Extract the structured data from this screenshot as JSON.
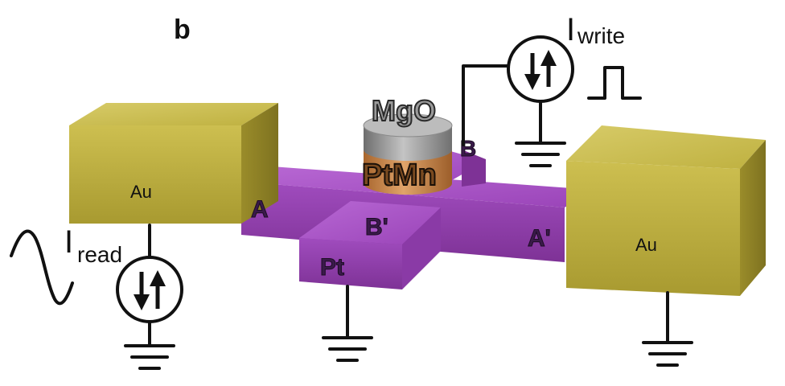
{
  "panel_label": "b",
  "labels": {
    "au_left": "Au",
    "au_right": "Au",
    "mgo": "MgO",
    "ptmn": "PtMn",
    "pt": "Pt",
    "arm_a": "A",
    "arm_a_prime": "A'",
    "arm_b": "B",
    "arm_b_prime": "B'"
  },
  "currents": {
    "read": {
      "symbol": "I",
      "subscript": "read"
    },
    "write": {
      "symbol": "I",
      "subscript": "write"
    }
  },
  "colors": {
    "gold": "#b8a93a",
    "gold_dark": "#8f8226",
    "gold_light": "#cfc257",
    "purple": "#a24fc0",
    "purple_dark": "#7a2f96",
    "purple_light": "#bd6fd8",
    "copper": "#c8874a",
    "gray": "#8a8a8a",
    "gray_light": "#b4b4b4",
    "line": "#111111"
  }
}
